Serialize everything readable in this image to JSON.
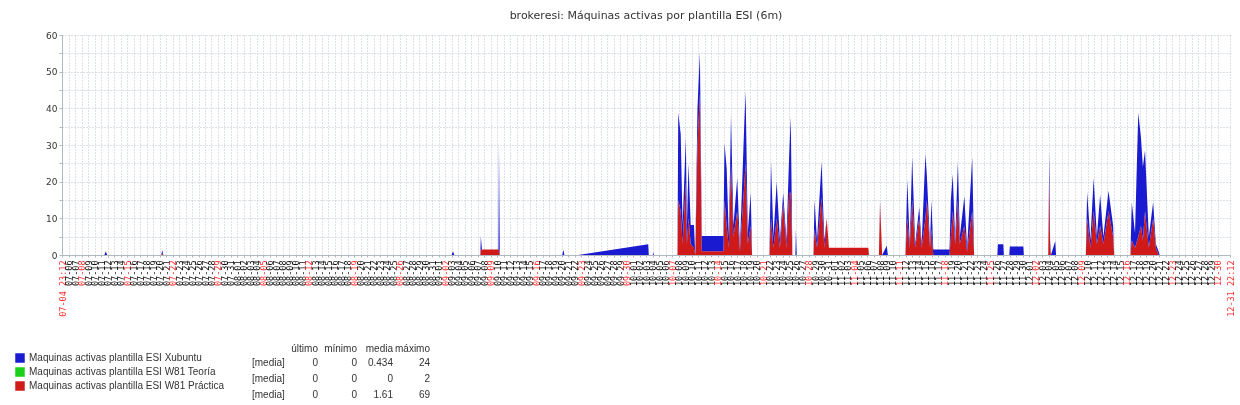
{
  "chart_data": {
    "type": "area",
    "title": "brokeresi: Máquinas activas por plantilla ESI (6m)",
    "stacked": true,
    "grid": true,
    "legend": "bottom left",
    "x": [
      "--07-04T23:12",
      "--07-11T12:00",
      "--07-11T17:00",
      "--07-11T22:00",
      "--07-20T06:00",
      "--07-20T10:00",
      "--07-20T14:00",
      "--09-03T00:00",
      "--09-03T05:00",
      "--09-03T10:00",
      "--09-07T10:00",
      "--09-07T12:00",
      "--09-07T16:00",
      "--09-10T05:00",
      "--09-10T07:00",
      "--09-10T10:00",
      "--09-20T01:00",
      "--09-20T05:00",
      "--09-20T09:00",
      "--09-22T12:00",
      "--10-03T07:00",
      "--10-03T09:00",
      "--10-04T00:00",
      "--10-04T02:00",
      "--10-04T04:00",
      "--10-07T19:00",
      "--10-07T22:00",
      "--10-08T07:00",
      "--10-08T14:00",
      "--10-09T02:00",
      "--10-09T06:00",
      "--10-09T12:00",
      "--10-09T20:00",
      "--10-10T08:00",
      "--10-10T13:00",
      "--10-10T21:00",
      "--10-11T06:00",
      "--10-11T13:00",
      "--10-14T21:00",
      "--10-15T01:00",
      "--10-15T09:00",
      "--10-15T17:00",
      "--10-16T01:00",
      "--10-16T10:00",
      "--10-17T00:00",
      "--10-17T10:00",
      "--10-18T01:00",
      "--10-18T07:00",
      "--10-18T15:00",
      "--10-19T02:00",
      "--10-19T07:00",
      "--10-21T23:00",
      "--10-22T05:00",
      "--10-22T14:00",
      "--10-23T02:00",
      "--10-23T14:00",
      "--10-24T02:00",
      "--10-24T14:00",
      "--10-25T00:00",
      "--10-25T06:00",
      "--10-25T12:00",
      "--10-25T23:00",
      "--10-26T01:00",
      "--10-26T04:00",
      "--10-28T18:00",
      "--10-28T22:00",
      "--10-29T07:00",
      "--10-30T00:00",
      "--10-30T10:00",
      "--10-30T19:00",
      "--10-31T03:00",
      "--11-06T05:00",
      "--11-06T07:00",
      "--11-07T20:00",
      "--11-08T00:00",
      "--11-08T08:00",
      "--11-09T01:00",
      "--11-09T05:00",
      "--11-11T22:00",
      "--11-12T05:00",
      "--11-12T14:00",
      "--11-12T23:00",
      "--11-13T10:00",
      "--11-14T01:00",
      "--11-14T10:00",
      "--11-15T00:00",
      "--11-15T05:00",
      "--11-15T17:00",
      "--11-15T22:00",
      "--11-16T05:00",
      "--11-18T17:00",
      "--11-18T22:00",
      "--11-19T05:00",
      "--11-19T14:00",
      "--11-20T00:00",
      "--11-20T07:00",
      "--11-21T00:00",
      "--11-21T10:00",
      "--11-22T05:00",
      "--11-22T12:00",
      "--11-26T02:00",
      "--11-26T04:00",
      "--11-27T00:00",
      "--11-27T02:00",
      "--11-27T22:00",
      "--11-28T00:00",
      "--11-30T02:00",
      "--11-30T04:00",
      "--12-03T22:00",
      "--12-04T02:00",
      "--12-04T05:00",
      "--12-04T08:00",
      "--12-05T00:00",
      "--12-05T03:00",
      "--12-09T17:00",
      "--12-09T22:00",
      "--12-10T10:00",
      "--12-10T22:00",
      "--12-11T10:00",
      "--12-11T22:00",
      "--12-12T10:00",
      "--12-13T05:00",
      "--12-13T22:00",
      "--12-14T02:00",
      "--12-16T14:00",
      "--12-16T19:00",
      "--12-17T07:00",
      "--12-17T19:00",
      "--12-18T05:00",
      "--12-18T12:00",
      "--12-18T20:00",
      "--12-19T10:00",
      "--12-20T02:00",
      "--12-20T12:00",
      "--12-20T22:00",
      "--12-21T02:00",
      "--12-31T22:12"
    ],
    "series": [
      {
        "name": "Maquinas activas plantilla ESI W81 Práctica",
        "color": "#d01a1a",
        "values": [
          0,
          0,
          0,
          0,
          0,
          0.5,
          0,
          0,
          0,
          0,
          0,
          1.5,
          1.5,
          1.5,
          1.5,
          0,
          0,
          0,
          0,
          0,
          0,
          0,
          0,
          0,
          0,
          0,
          15,
          12,
          3,
          20,
          3,
          10,
          3,
          2,
          0,
          30,
          44,
          1,
          1,
          15,
          8,
          2,
          25,
          5,
          12,
          1,
          18,
          25,
          3,
          8,
          0,
          0,
          10,
          2,
          10,
          2,
          14,
          2,
          17,
          17,
          0,
          0,
          0,
          0,
          0,
          7,
          2,
          15.7,
          2,
          10,
          2,
          2,
          0,
          0,
          14,
          0,
          0,
          0,
          0,
          10,
          2,
          15,
          2,
          10,
          2,
          10,
          15,
          2,
          7,
          0,
          0,
          5,
          12,
          3,
          15,
          3,
          8,
          1,
          12,
          0,
          0,
          0,
          0,
          0,
          0,
          0,
          0,
          0,
          0,
          21,
          2,
          0,
          0,
          0,
          0,
          10,
          2,
          12,
          3,
          8,
          3,
          12,
          5,
          0,
          0,
          4,
          2,
          5,
          8,
          4,
          12,
          2,
          10,
          2,
          0,
          0,
          0
        ]
      },
      {
        "name": "Maquinas activas plantilla ESI W81 Teoría",
        "color": "#1ad01a",
        "values": [
          null,
          null,
          null,
          null,
          null,
          null,
          null,
          null,
          null,
          null,
          null,
          null,
          null,
          null,
          null,
          null,
          null,
          null,
          null,
          null,
          null,
          null,
          null,
          null,
          null,
          null,
          null,
          null,
          null,
          null,
          null,
          null,
          null,
          null,
          null,
          null,
          null,
          null,
          null,
          null,
          null,
          null,
          null,
          null,
          null,
          null,
          null,
          null,
          null,
          null,
          null,
          null,
          null,
          null,
          null,
          null,
          null,
          null,
          null,
          null,
          null,
          null,
          null,
          null,
          null,
          null,
          null,
          null,
          null,
          null,
          null,
          null,
          null,
          null,
          null,
          null,
          null,
          null,
          null,
          null,
          null,
          null,
          null,
          null,
          null,
          null,
          null,
          null,
          null,
          null,
          null,
          null,
          null,
          null,
          null,
          null,
          null,
          null,
          null,
          null,
          null,
          null,
          null,
          null,
          null,
          null,
          null,
          null,
          null,
          null,
          null,
          null,
          null,
          null,
          null,
          null,
          null,
          null,
          null,
          null,
          null,
          null,
          null,
          null,
          null,
          null,
          null,
          null,
          null,
          null,
          null,
          null,
          null,
          null,
          null,
          null,
          null
        ]
      },
      {
        "name": "Maquinas activas plantilla ESI Xubuntu",
        "color": "#1a1ad0",
        "values": [
          0,
          0,
          1,
          0,
          0,
          0.8,
          0,
          0,
          1,
          0,
          0,
          3.7,
          0,
          0,
          29,
          0,
          0,
          1.4,
          0,
          0,
          2.9,
          0,
          0,
          0.8,
          0,
          0,
          23.8,
          21,
          5.2,
          12,
          5.2,
          15,
          5.2,
          6.2,
          0,
          10,
          11.3,
          4.2,
          4.2,
          15.5,
          15.6,
          3,
          13,
          3,
          9,
          1,
          15.5,
          19.8,
          3,
          9,
          0,
          0,
          15.4,
          3,
          10,
          2,
          3,
          2,
          10,
          20.7,
          0,
          0,
          7,
          0,
          0,
          8,
          2,
          9.7,
          2,
          0,
          0,
          0,
          0,
          0,
          0.7,
          0,
          2.5,
          0,
          0,
          10.6,
          1,
          11.7,
          1,
          3,
          1,
          17.5,
          7,
          1,
          8,
          1.5,
          1.5,
          10,
          10,
          1,
          10.4,
          2,
          8,
          1,
          14.7,
          0,
          0,
          2.9,
          2.9,
          0,
          0,
          2.3,
          2.3,
          0,
          0,
          7,
          2,
          0,
          3.8,
          0,
          0,
          7.2,
          2,
          9,
          2,
          8.4,
          2,
          5.5,
          3,
          0,
          0,
          10.4,
          4,
          33.8,
          24,
          20,
          16.5,
          3,
          4.4,
          1,
          1,
          0,
          0
        ]
      }
    ],
    "xlim": [
      "--07-04T23:12",
      "--12-31T22:12"
    ],
    "xticks": [
      {
        "value": "--07-04T23:12",
        "label": "07-04 23:12"
      },
      {
        "value": "--07-06",
        "label": "07-06"
      },
      {
        "value": "--07-07",
        "label": "07-07"
      },
      {
        "value": "--07-08",
        "label": "07-08"
      },
      {
        "value": "--07-09",
        "label": "07-09"
      },
      {
        "value": "--07-10",
        "label": "07-10"
      },
      {
        "value": "--07-11",
        "label": "07-11"
      },
      {
        "value": "--07-12",
        "label": "07-12"
      },
      {
        "value": "--07-13",
        "label": "07-13"
      },
      {
        "value": "--07-14",
        "label": "07-14"
      },
      {
        "value": "--07-15",
        "label": "07-15"
      },
      {
        "value": "--07-16",
        "label": "07-16"
      },
      {
        "value": "--07-17",
        "label": "07-17"
      },
      {
        "value": "--07-18",
        "label": "07-18"
      },
      {
        "value": "--07-19",
        "label": "07-19"
      },
      {
        "value": "--07-20",
        "label": "07-20"
      },
      {
        "value": "--07-21",
        "label": "07-21"
      },
      {
        "value": "--07-22",
        "label": "07-22"
      },
      {
        "value": "--07-23",
        "label": "07-23"
      },
      {
        "value": "--07-24",
        "label": "07-24"
      },
      {
        "value": "--07-25",
        "label": "07-25"
      },
      {
        "value": "--07-26",
        "label": "07-26"
      },
      {
        "value": "--07-27",
        "label": "07-27"
      },
      {
        "value": "--07-28",
        "label": "07-28"
      },
      {
        "value": "--07-29",
        "label": "07-29"
      },
      {
        "value": "--07-30",
        "label": "07-30"
      },
      {
        "value": "--07-31",
        "label": "07-31"
      },
      {
        "value": "--08-01",
        "label": "08-01"
      },
      {
        "value": "--08-02",
        "label": "08-02"
      },
      {
        "value": "--08-03",
        "label": "08-03"
      },
      {
        "value": "--08-04",
        "label": "08-04"
      },
      {
        "value": "--08-05",
        "label": "08-05"
      },
      {
        "value": "--08-06",
        "label": "08-06"
      },
      {
        "value": "--08-07",
        "label": "08-07"
      },
      {
        "value": "--08-08",
        "label": "08-08"
      },
      {
        "value": "--08-09",
        "label": "08-09"
      },
      {
        "value": "--08-10",
        "label": "08-10"
      },
      {
        "value": "--08-11",
        "label": "08-11"
      },
      {
        "value": "--08-12",
        "label": "08-12"
      },
      {
        "value": "--08-13",
        "label": "08-13"
      },
      {
        "value": "--08-14",
        "label": "08-14"
      },
      {
        "value": "--08-15",
        "label": "08-15"
      },
      {
        "value": "--08-16",
        "label": "08-16"
      },
      {
        "value": "--08-17",
        "label": "08-17"
      },
      {
        "value": "--08-18",
        "label": "08-18"
      },
      {
        "value": "--08-19",
        "label": "08-19"
      },
      {
        "value": "--08-20",
        "label": "08-20"
      },
      {
        "value": "--08-21",
        "label": "08-21"
      },
      {
        "value": "--08-22",
        "label": "08-22"
      },
      {
        "value": "--08-23",
        "label": "08-23"
      },
      {
        "value": "--08-24",
        "label": "08-24"
      },
      {
        "value": "--08-25",
        "label": "08-25"
      },
      {
        "value": "--08-26",
        "label": "08-26"
      },
      {
        "value": "--08-27",
        "label": "08-27"
      },
      {
        "value": "--08-28",
        "label": "08-28"
      },
      {
        "value": "--08-29",
        "label": "08-29"
      },
      {
        "value": "--08-30",
        "label": "08-30"
      },
      {
        "value": "--08-31",
        "label": "08-31"
      },
      {
        "value": "--09-01",
        "label": "09-01"
      },
      {
        "value": "--09-02",
        "label": "09-02"
      },
      {
        "value": "--09-03",
        "label": "09-03"
      },
      {
        "value": "--09-04",
        "label": "09-04"
      },
      {
        "value": "--09-05",
        "label": "09-05"
      },
      {
        "value": "--09-06",
        "label": "09-06"
      },
      {
        "value": "--09-07",
        "label": "09-07"
      },
      {
        "value": "--09-08",
        "label": "09-08"
      },
      {
        "value": "--09-09",
        "label": "09-09"
      },
      {
        "value": "--09-10",
        "label": "09-10"
      },
      {
        "value": "--09-11",
        "label": "09-11"
      },
      {
        "value": "--09-12",
        "label": "09-12"
      },
      {
        "value": "--09-13",
        "label": "09-13"
      },
      {
        "value": "--09-14",
        "label": "09-14"
      },
      {
        "value": "--09-15",
        "label": "09-15"
      },
      {
        "value": "--09-16",
        "label": "09-16"
      },
      {
        "value": "--09-17",
        "label": "09-17"
      },
      {
        "value": "--09-18",
        "label": "09-18"
      },
      {
        "value": "--09-19",
        "label": "09-19"
      },
      {
        "value": "--09-20",
        "label": "09-20"
      },
      {
        "value": "--09-21",
        "label": "09-21"
      },
      {
        "value": "--09-22",
        "label": "09-22"
      },
      {
        "value": "--09-23",
        "label": "09-23"
      },
      {
        "value": "--09-24",
        "label": "09-24"
      },
      {
        "value": "--09-25",
        "label": "09-25"
      },
      {
        "value": "--09-26",
        "label": "09-26"
      },
      {
        "value": "--09-27",
        "label": "09-27"
      },
      {
        "value": "--09-28",
        "label": "09-28"
      },
      {
        "value": "--09-29",
        "label": "09-29"
      },
      {
        "value": "--09-30",
        "label": "09-30"
      },
      {
        "value": "--10-01",
        "label": "10-01"
      },
      {
        "value": "--10-02",
        "label": "10-02"
      },
      {
        "value": "--10-03",
        "label": "10-03"
      },
      {
        "value": "--10-04",
        "label": "10-04"
      },
      {
        "value": "--10-05",
        "label": "10-05"
      },
      {
        "value": "--10-06",
        "label": "10-06"
      },
      {
        "value": "--10-07",
        "label": "10-07"
      },
      {
        "value": "--10-08",
        "label": "10-08"
      },
      {
        "value": "--10-09",
        "label": "10-09"
      },
      {
        "value": "--10-10",
        "label": "10-10"
      },
      {
        "value": "--10-11",
        "label": "10-11"
      },
      {
        "value": "--10-12",
        "label": "10-12"
      },
      {
        "value": "--10-13",
        "label": "10-13"
      },
      {
        "value": "--10-14",
        "label": "10-14"
      },
      {
        "value": "--10-15",
        "label": "10-15"
      },
      {
        "value": "--10-16",
        "label": "10-16"
      },
      {
        "value": "--10-17",
        "label": "10-17"
      },
      {
        "value": "--10-18",
        "label": "10-18"
      },
      {
        "value": "--10-19",
        "label": "10-19"
      },
      {
        "value": "--10-20",
        "label": "10-20"
      },
      {
        "value": "--10-21",
        "label": "10-21"
      },
      {
        "value": "--10-22",
        "label": "10-22"
      },
      {
        "value": "--10-23",
        "label": "10-23"
      },
      {
        "value": "--10-24",
        "label": "10-24"
      },
      {
        "value": "--10-25",
        "label": "10-25"
      },
      {
        "value": "--10-26",
        "label": "10-26"
      },
      {
        "value": "--10-27",
        "label": "10-27"
      },
      {
        "value": "--10-28",
        "label": "10-28"
      },
      {
        "value": "--10-29",
        "label": "10-29"
      },
      {
        "value": "--10-30",
        "label": "10-30"
      },
      {
        "value": "--10-31",
        "label": "10-31"
      },
      {
        "value": "--11-01",
        "label": "11-01"
      },
      {
        "value": "--11-02",
        "label": "11-02"
      },
      {
        "value": "--11-03",
        "label": "11-03"
      },
      {
        "value": "--11-04",
        "label": "11-04"
      },
      {
        "value": "--11-05",
        "label": "11-05"
      },
      {
        "value": "--11-06",
        "label": "11-06"
      },
      {
        "value": "--11-07",
        "label": "11-07"
      },
      {
        "value": "--11-08",
        "label": "11-08"
      },
      {
        "value": "--11-09",
        "label": "11-09"
      },
      {
        "value": "--11-10",
        "label": "11-10"
      },
      {
        "value": "--11-11",
        "label": "11-11"
      },
      {
        "value": "--11-12",
        "label": "11-12"
      },
      {
        "value": "--11-13",
        "label": "11-13"
      },
      {
        "value": "--11-14",
        "label": "11-14"
      },
      {
        "value": "--11-15",
        "label": "11-15"
      },
      {
        "value": "--11-16",
        "label": "11-16"
      },
      {
        "value": "--11-17",
        "label": "11-17"
      },
      {
        "value": "--11-18",
        "label": "11-18"
      },
      {
        "value": "--11-19",
        "label": "11-19"
      },
      {
        "value": "--11-20",
        "label": "11-20"
      },
      {
        "value": "--11-21",
        "label": "11-21"
      },
      {
        "value": "--11-22",
        "label": "11-22"
      },
      {
        "value": "--11-23",
        "label": "11-23"
      },
      {
        "value": "--11-24",
        "label": "11-24"
      },
      {
        "value": "--11-25",
        "label": "11-25"
      },
      {
        "value": "--11-26",
        "label": "11-26"
      },
      {
        "value": "--11-27",
        "label": "11-27"
      },
      {
        "value": "--11-28",
        "label": "11-28"
      },
      {
        "value": "--11-29",
        "label": "11-29"
      },
      {
        "value": "--11-30",
        "label": "11-30"
      },
      {
        "value": "--12-01",
        "label": "12-01"
      },
      {
        "value": "--12-02",
        "label": "12-02"
      },
      {
        "value": "--12-03",
        "label": "12-03"
      },
      {
        "value": "--12-04",
        "label": "12-04"
      },
      {
        "value": "--12-05",
        "label": "12-05"
      },
      {
        "value": "--12-06",
        "label": "12-06"
      },
      {
        "value": "--12-07",
        "label": "12-07"
      },
      {
        "value": "--12-08",
        "label": "12-08"
      },
      {
        "value": "--12-09",
        "label": "12-09"
      },
      {
        "value": "--12-10",
        "label": "12-10"
      },
      {
        "value": "--12-11",
        "label": "12-11"
      },
      {
        "value": "--12-12",
        "label": "12-12"
      },
      {
        "value": "--12-13",
        "label": "12-13"
      },
      {
        "value": "--12-14",
        "label": "12-14"
      },
      {
        "value": "--12-15",
        "label": "12-15"
      },
      {
        "value": "--12-16",
        "label": "12-16"
      },
      {
        "value": "--12-17",
        "label": "12-17"
      },
      {
        "value": "--12-18",
        "label": "12-18"
      },
      {
        "value": "--12-19",
        "label": "12-19"
      },
      {
        "value": "--12-20",
        "label": "12-20"
      },
      {
        "value": "--12-21",
        "label": "12-21"
      },
      {
        "value": "--12-22",
        "label": "12-22"
      },
      {
        "value": "--12-23",
        "label": "12-23"
      },
      {
        "value": "--12-24",
        "label": "12-24"
      },
      {
        "value": "--12-25",
        "label": "12-25"
      },
      {
        "value": "--12-26",
        "label": "12-26"
      },
      {
        "value": "--12-27",
        "label": "12-27"
      },
      {
        "value": "--12-28",
        "label": "12-28"
      },
      {
        "value": "--12-29",
        "label": "12-29"
      },
      {
        "value": "--12-30",
        "label": "12-30"
      },
      {
        "value": "--12-31T22:12",
        "label": "12-31 22:12"
      }
    ],
    "ylim": [
      0,
      60
    ],
    "yticks": [
      0,
      {
        "value": 5,
        "label": null
      },
      10,
      {
        "value": 15,
        "label": null
      },
      20,
      {
        "value": 25,
        "label": null
      },
      30,
      {
        "value": 35,
        "label": null
      },
      40,
      {
        "value": 45,
        "label": null
      },
      50,
      {
        "value": 55,
        "label": null
      },
      60
    ],
    "annotations": [
      "último",
      "mínimo",
      "media",
      "máximo",
      "[media]",
      "0",
      "0",
      "0.434",
      "24",
      "[media]",
      "0",
      "0",
      "0",
      "2",
      "[media]",
      "0",
      "0",
      "1.61",
      "69"
    ]
  }
}
